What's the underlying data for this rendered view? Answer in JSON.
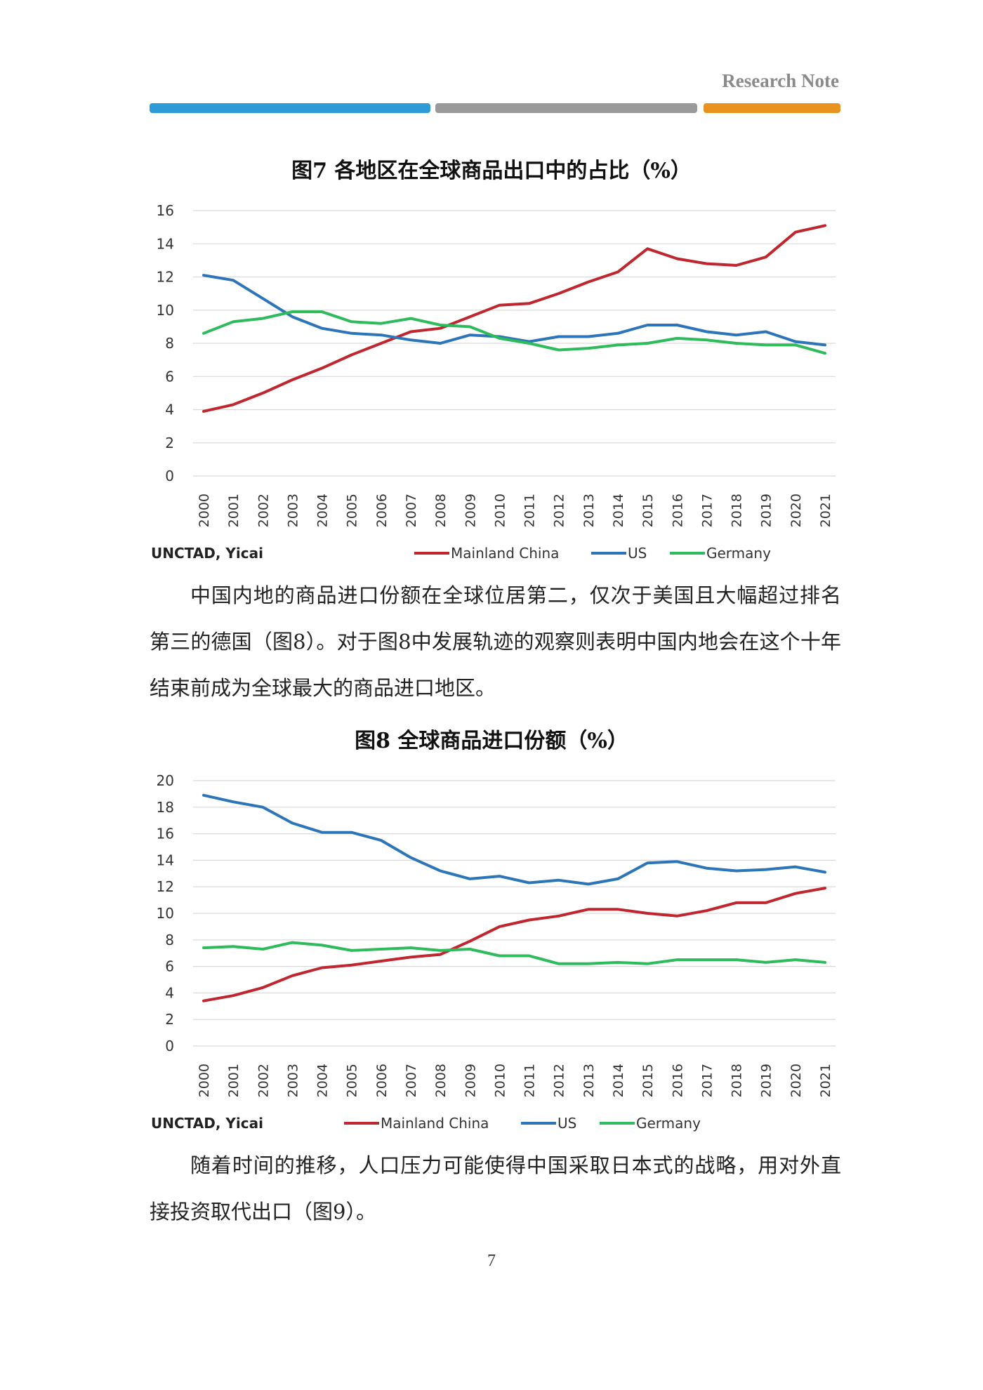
{
  "header": {
    "note": "Research Note",
    "colors": {
      "blue": "#2e9bd6",
      "gray": "#9a9a9a",
      "orange": "#e8921f"
    }
  },
  "figures": [
    {
      "title": "图7 各地区在全球商品出口中的占比（%）",
      "source": "UNCTAD, Yicai"
    },
    {
      "title": "图8 全球商品进口份额（%）",
      "source": "UNCTAD, Yicai"
    }
  ],
  "paragraphs": [
    "中国内地的商品进口份额在全球位居第二，仅次于美国且大幅超过排名第三的德国（图8）。对于图8中发展轨迹的观察则表明中国内地会在这个十年结束前成为全球最大的商品进口地区。",
    "随着时间的推移，人口压力可能使得中国采取日本式的战略，用对外直接投资取代出口（图9）。"
  ],
  "page_number": "7",
  "chart_data": [
    {
      "type": "line",
      "x": [
        "2000",
        "2001",
        "2002",
        "2003",
        "2004",
        "2005",
        "2006",
        "2007",
        "2008",
        "2009",
        "2010",
        "2011",
        "2012",
        "2013",
        "2014",
        "2015",
        "2016",
        "2017",
        "2018",
        "2019",
        "2020",
        "2021"
      ],
      "ylim": [
        0,
        16
      ],
      "yticks": [
        0,
        2,
        4,
        6,
        8,
        10,
        12,
        14,
        16
      ],
      "grid": true,
      "legend": "bottom",
      "series": [
        {
          "name": "Mainland China",
          "color": "#c0262d",
          "values": [
            3.9,
            4.3,
            5.0,
            5.8,
            6.5,
            7.3,
            8.0,
            8.7,
            8.9,
            9.6,
            10.3,
            10.4,
            11.0,
            11.7,
            12.3,
            13.7,
            13.1,
            12.8,
            12.7,
            13.2,
            14.7,
            15.1
          ]
        },
        {
          "name": "US",
          "color": "#2b75b8",
          "values": [
            12.1,
            11.8,
            10.7,
            9.6,
            8.9,
            8.6,
            8.5,
            8.2,
            8.0,
            8.5,
            8.4,
            8.1,
            8.4,
            8.4,
            8.6,
            9.1,
            9.1,
            8.7,
            8.5,
            8.7,
            8.1,
            7.9
          ]
        },
        {
          "name": "Germany",
          "color": "#2ebb5c",
          "values": [
            8.6,
            9.3,
            9.5,
            9.9,
            9.9,
            9.3,
            9.2,
            9.5,
            9.1,
            9.0,
            8.3,
            8.0,
            7.6,
            7.7,
            7.9,
            8.0,
            8.3,
            8.2,
            8.0,
            7.9,
            7.9,
            7.4
          ]
        }
      ]
    },
    {
      "type": "line",
      "x": [
        "2000",
        "2001",
        "2002",
        "2003",
        "2004",
        "2005",
        "2006",
        "2007",
        "2008",
        "2009",
        "2010",
        "2011",
        "2012",
        "2013",
        "2014",
        "2015",
        "2016",
        "2017",
        "2018",
        "2019",
        "2020",
        "2021"
      ],
      "ylim": [
        0,
        20
      ],
      "yticks": [
        0,
        2,
        4,
        6,
        8,
        10,
        12,
        14,
        16,
        18,
        20
      ],
      "grid": true,
      "legend": "bottom",
      "series": [
        {
          "name": "Mainland China",
          "color": "#c0262d",
          "values": [
            3.4,
            3.8,
            4.4,
            5.3,
            5.9,
            6.1,
            6.4,
            6.7,
            6.9,
            7.9,
            9.0,
            9.5,
            9.8,
            10.3,
            10.3,
            10.0,
            9.8,
            10.2,
            10.8,
            10.8,
            11.5,
            11.9
          ]
        },
        {
          "name": "US",
          "color": "#2b75b8",
          "values": [
            18.9,
            18.4,
            18.0,
            16.8,
            16.1,
            16.1,
            15.5,
            14.2,
            13.2,
            12.6,
            12.8,
            12.3,
            12.5,
            12.2,
            12.6,
            13.8,
            13.9,
            13.4,
            13.2,
            13.3,
            13.5,
            13.1
          ]
        },
        {
          "name": "Germany",
          "color": "#2ebb5c",
          "values": [
            7.4,
            7.5,
            7.3,
            7.8,
            7.6,
            7.2,
            7.3,
            7.4,
            7.2,
            7.3,
            6.8,
            6.8,
            6.2,
            6.2,
            6.3,
            6.2,
            6.5,
            6.5,
            6.5,
            6.3,
            6.5,
            6.3
          ]
        }
      ]
    }
  ]
}
